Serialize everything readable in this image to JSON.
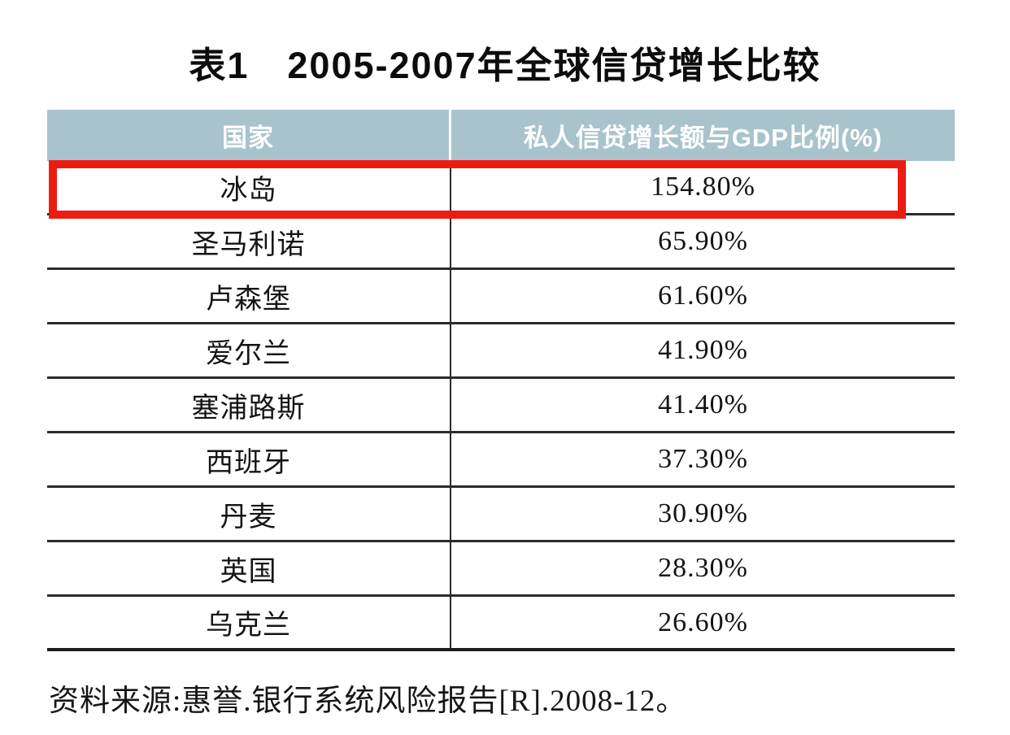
{
  "title": "表1　2005-2007年全球信贷增长比较",
  "table": {
    "headers": [
      "国家",
      "私人信贷增长额与GDP比例(%)"
    ],
    "rows": [
      {
        "country": "冰岛",
        "value": "154.80%",
        "highlighted": true
      },
      {
        "country": "圣马利诺",
        "value": "65.90%",
        "highlighted": false
      },
      {
        "country": "卢森堡",
        "value": "61.60%",
        "highlighted": false
      },
      {
        "country": "爱尔兰",
        "value": "41.90%",
        "highlighted": false
      },
      {
        "country": "塞浦路斯",
        "value": "41.40%",
        "highlighted": false
      },
      {
        "country": "西班牙",
        "value": "37.30%",
        "highlighted": false
      },
      {
        "country": "丹麦",
        "value": "30.90%",
        "highlighted": false
      },
      {
        "country": "英国",
        "value": "28.30%",
        "highlighted": false
      },
      {
        "country": "乌克兰",
        "value": "26.60%",
        "highlighted": false
      }
    ]
  },
  "source": "资料来源:惠誉.银行系统风险报告[R].2008-12。",
  "colors": {
    "header_bg": "#a8c3cc",
    "header_text": "#ffffff",
    "grid_line": "#2b2b2b",
    "highlight_red": "#ed1c10",
    "background": "#ffffff"
  },
  "chart_data": {
    "type": "table",
    "title": "表1 2005-2007年全球信贷增长比较",
    "columns": [
      "国家",
      "私人信贷增长额与GDP比例(%)"
    ],
    "categories": [
      "冰岛",
      "圣马利诺",
      "卢森堡",
      "爱尔兰",
      "塞浦路斯",
      "西班牙",
      "丹麦",
      "英国",
      "乌克兰"
    ],
    "values": [
      154.8,
      65.9,
      61.6,
      41.9,
      41.4,
      37.3,
      30.9,
      28.3,
      26.6
    ],
    "highlighted_row": "冰岛",
    "source": "资料来源:惠誉.银行系统风险报告[R].2008-12。"
  }
}
